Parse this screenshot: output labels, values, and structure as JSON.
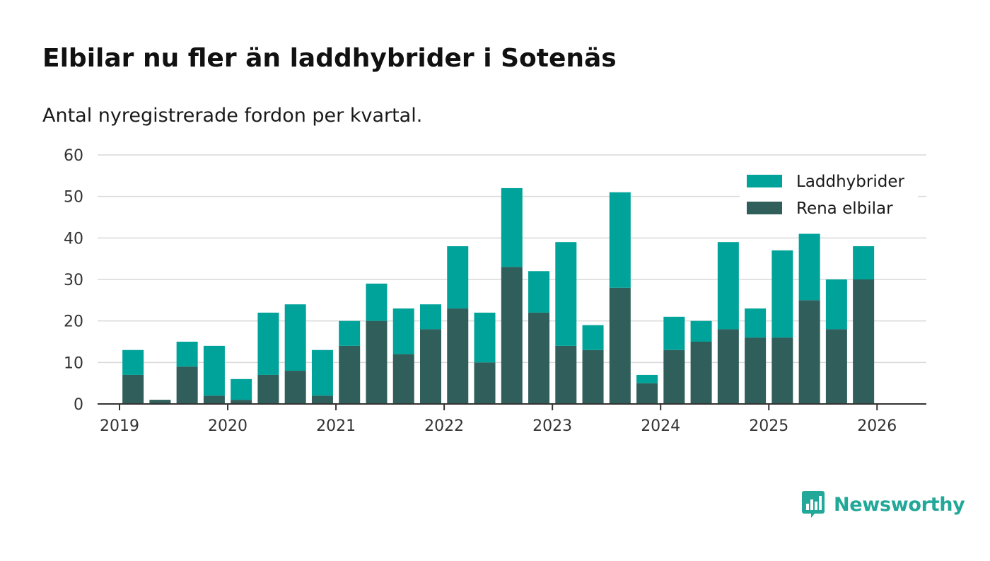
{
  "title": "Elbilar nu fler än laddhybrider i Sotenäs",
  "subtitle": "Antal nyregistrerade fordon per kvartal.",
  "brand": "Newsworthy",
  "colors": {
    "laddhybrider": "#00a39a",
    "rena_elbilar": "#305e5a",
    "grid": "#d9d9d9",
    "axis": "#333333",
    "brand": "#22a898"
  },
  "chart_data": {
    "type": "bar",
    "stacked": true,
    "title": "Elbilar nu fler än laddhybrider i Sotenäs",
    "subtitle": "Antal nyregistrerade fordon per kvartal.",
    "xlabel": "",
    "ylabel": "",
    "ylim": [
      0,
      60
    ],
    "yticks": [
      0,
      10,
      20,
      30,
      40,
      50,
      60
    ],
    "xticks": [
      "2019",
      "2020",
      "2021",
      "2022",
      "2023",
      "2024",
      "2025",
      "2026"
    ],
    "grid": true,
    "legend_position": "top-right",
    "categories": [
      "2019 Q1",
      "2019 Q2",
      "2019 Q3",
      "2019 Q4",
      "2020 Q1",
      "2020 Q2",
      "2020 Q3",
      "2020 Q4",
      "2021 Q1",
      "2021 Q2",
      "2021 Q3",
      "2021 Q4",
      "2022 Q1",
      "2022 Q2",
      "2022 Q3",
      "2022 Q4",
      "2023 Q1",
      "2023 Q2",
      "2023 Q3",
      "2023 Q4",
      "2024 Q1",
      "2024 Q2",
      "2024 Q3",
      "2024 Q4",
      "2025 Q1",
      "2025 Q2",
      "2025 Q3",
      "2025 Q4"
    ],
    "series": [
      {
        "name": "Rena elbilar",
        "color": "#305e5a",
        "values": [
          7,
          1,
          9,
          2,
          1,
          7,
          8,
          2,
          14,
          20,
          12,
          18,
          23,
          10,
          33,
          22,
          14,
          13,
          28,
          5,
          13,
          15,
          18,
          16,
          16,
          25,
          18,
          30
        ]
      },
      {
        "name": "Laddhybrider",
        "color": "#00a39a",
        "values": [
          6,
          0,
          6,
          12,
          5,
          15,
          16,
          11,
          6,
          9,
          11,
          6,
          15,
          12,
          19,
          10,
          25,
          6,
          23,
          2,
          8,
          5,
          21,
          7,
          21,
          16,
          12,
          8
        ]
      }
    ]
  }
}
